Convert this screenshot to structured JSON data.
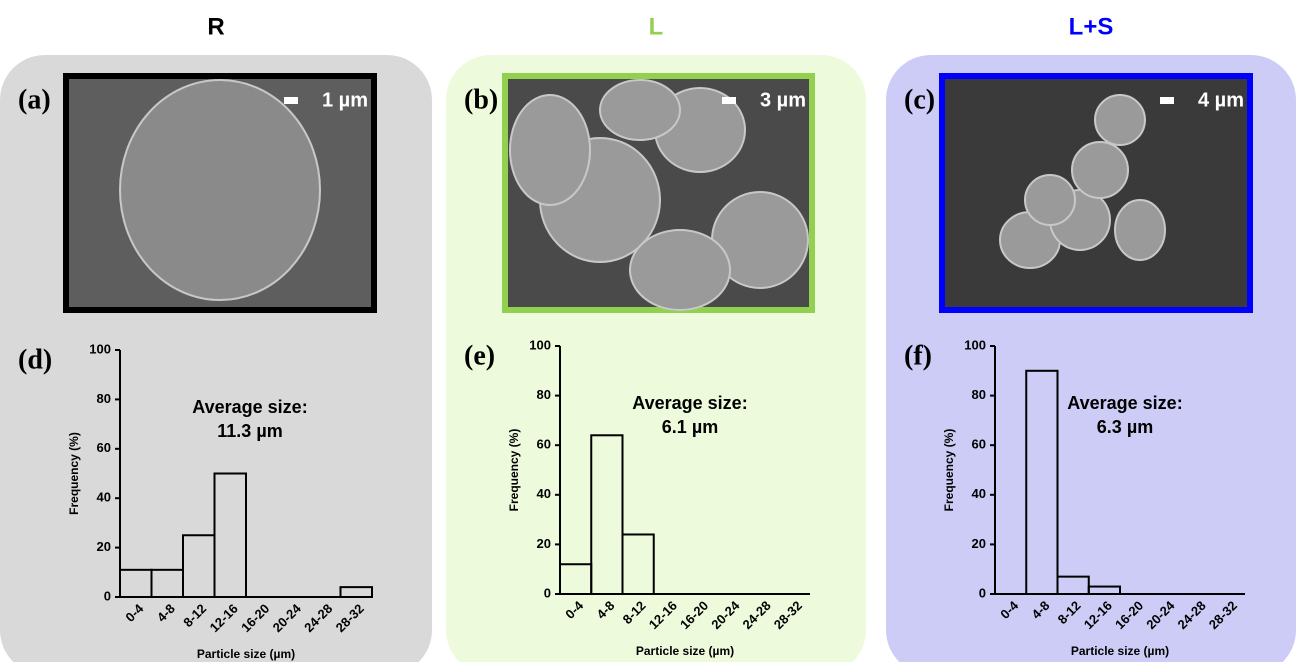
{
  "panels": [
    {
      "title": "R",
      "color": "#000000",
      "background": "#d9d9d9",
      "image_label": "(a)",
      "scale_bar": "1 µm"
    },
    {
      "title": "L",
      "color": "#92d050",
      "background": "#eefadc",
      "image_label": "(b)",
      "scale_bar": "3 µm"
    },
    {
      "title": "L+S",
      "color": "#0000ff",
      "background": "#ccccf6",
      "image_label": "(c)",
      "scale_bar": "4 µm"
    }
  ],
  "chart_data": [
    {
      "type": "bar",
      "label": "(d)",
      "annotation": [
        "Average size:",
        "11.3 µm"
      ],
      "categories": [
        "0-4",
        "4-8",
        "8-12",
        "12-16",
        "16-20",
        "20-24",
        "24-28",
        "28-32"
      ],
      "values": [
        11,
        11,
        25,
        50,
        0,
        0,
        0,
        4
      ],
      "xlabel": "Particle size (µm)",
      "ylabel": "Frequency (%)",
      "ylim": [
        0,
        100
      ],
      "yticks": [
        0,
        20,
        40,
        60,
        80,
        100
      ]
    },
    {
      "type": "bar",
      "label": "(e)",
      "annotation": [
        "Average size:",
        "6.1 µm"
      ],
      "categories": [
        "0-4",
        "4-8",
        "8-12",
        "12-16",
        "16-20",
        "20-24",
        "24-28",
        "28-32"
      ],
      "values": [
        12,
        64,
        24,
        0,
        0,
        0,
        0,
        0
      ],
      "xlabel": "Particle size (µm)",
      "ylabel": "Frequency (%)",
      "ylim": [
        0,
        100
      ],
      "yticks": [
        0,
        20,
        40,
        60,
        80,
        100
      ]
    },
    {
      "type": "bar",
      "label": "(f)",
      "annotation": [
        "Average size:",
        "6.3 µm"
      ],
      "categories": [
        "0-4",
        "4-8",
        "8-12",
        "12-16",
        "16-20",
        "20-24",
        "24-28",
        "28-32"
      ],
      "values": [
        0,
        90,
        7,
        3,
        0,
        0,
        0,
        0
      ],
      "xlabel": "Particle size (µm)",
      "ylabel": "Frequency (%)",
      "ylim": [
        0,
        100
      ],
      "yticks": [
        0,
        20,
        40,
        60,
        80,
        100
      ]
    }
  ]
}
